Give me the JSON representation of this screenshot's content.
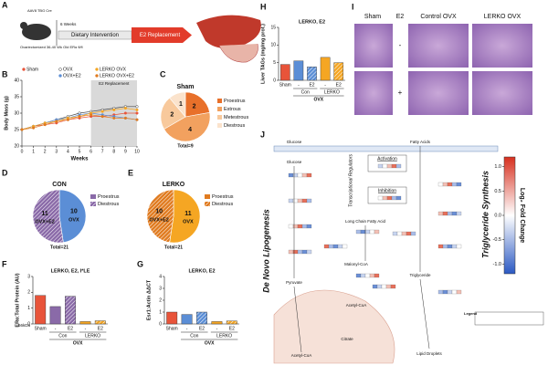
{
  "panels": [
    "A",
    "B",
    "C",
    "D",
    "E",
    "F",
    "G",
    "H",
    "I",
    "J"
  ],
  "schematic": {
    "aav": "AAV8 TBG Cre",
    "mouse": "Ovariectomized 36-40 Wk Old ERα fl/fl",
    "duration": "6 Weeks",
    "diet": "Dietary Intervention",
    "e2": "E2 Replacement"
  },
  "chart_data": [
    {
      "type": "line",
      "y_label": "Body Mass (g)",
      "x_label": "Weeks",
      "x": [
        0,
        1,
        2,
        3,
        4,
        5,
        6,
        7,
        8,
        9,
        10
      ],
      "xlim": [
        0,
        10
      ],
      "xticks": [
        0,
        1,
        2,
        3,
        4,
        5,
        6,
        7,
        8,
        9,
        10
      ],
      "ylim": [
        20,
        40
      ],
      "yticks": [
        20,
        25,
        30,
        35,
        40
      ],
      "annotation": {
        "text": "E2 Replacement",
        "x": [
          6,
          10
        ]
      },
      "series": [
        {
          "name": "Sham",
          "color": "#e8543a",
          "values": [
            25,
            26,
            26.5,
            27,
            28,
            28.5,
            29,
            29,
            29.5,
            30,
            30
          ]
        },
        {
          "name": "OVX",
          "color": "#444444",
          "values": [
            25,
            26,
            27,
            28,
            29,
            30,
            30.5,
            31,
            31.5,
            32,
            32
          ]
        },
        {
          "name": "OVX+E2",
          "color": "#5b8ed6",
          "values": [
            25,
            26,
            27,
            28,
            28.5,
            29.5,
            30,
            29.5,
            29,
            28.5,
            28
          ]
        },
        {
          "name": "LERKO OVX",
          "color": "#f5a623",
          "values": [
            25,
            26,
            27,
            27.5,
            28.5,
            29,
            30,
            30.5,
            31,
            31.5,
            31
          ]
        },
        {
          "name": "LERKO OVX+E2",
          "color": "#e07b20",
          "values": [
            25,
            25.5,
            26.5,
            27.5,
            28,
            29,
            29.5,
            29,
            28.5,
            28.5,
            28
          ]
        }
      ]
    },
    {
      "type": "pie",
      "title": "Sham",
      "categories": [
        "Proestrus",
        "Estrous",
        "Metestrous",
        "Diestrous"
      ],
      "values": [
        2,
        4,
        2,
        1
      ],
      "colors": [
        "#e8702a",
        "#f2a15f",
        "#f8c99c",
        "#fbe3cc"
      ],
      "footer": "Total=9"
    },
    {
      "type": "pie",
      "title": "CON",
      "categories": [
        "OVX",
        "OVX+E2"
      ],
      "values": [
        10,
        11
      ],
      "colors": [
        "#5b8ed6",
        "#8a6aa8"
      ],
      "hatched": [
        false,
        true
      ],
      "legend": [
        "Proestrus",
        "Diestrous"
      ],
      "footer": "Total=21"
    },
    {
      "type": "pie",
      "title": "LERKO",
      "categories": [
        "OVX",
        "OVX+E2"
      ],
      "values": [
        11,
        10
      ],
      "colors": [
        "#f5a623",
        "#e07b20"
      ],
      "hatched": [
        false,
        true
      ],
      "legend": [
        "Proestrus",
        "Diestrous"
      ],
      "footer": "Total=21"
    },
    {
      "type": "bar",
      "title": "LERKO, E2, I*LE",
      "y_label": "ERα:Total Protein (AU)",
      "categories": [
        "Sham",
        "-",
        "E2",
        "-",
        "E2"
      ],
      "groups": [
        "Con",
        "LERKO"
      ],
      "group_label": "OVX",
      "blot_label": "66kDa",
      "values": [
        1.8,
        1.1,
        1.75,
        0.15,
        0.2
      ],
      "colors": [
        "#e8543a",
        "#8a6aa8",
        "#8a6aa8",
        "#f5a623",
        "#f5a623"
      ],
      "hatched": [
        false,
        false,
        true,
        false,
        true
      ],
      "ylim": [
        0,
        3
      ],
      "yticks": [
        0,
        1,
        2,
        3
      ]
    },
    {
      "type": "bar",
      "title": "LERKO, E2",
      "y_label": "Esr1:Actin ΔΔCT",
      "categories": [
        "Sham",
        "-",
        "E2",
        "-",
        "E2"
      ],
      "groups": [
        "Con",
        "LERKO"
      ],
      "group_label": "OVX",
      "values": [
        1.0,
        0.8,
        1.0,
        0.2,
        0.25
      ],
      "colors": [
        "#e8543a",
        "#5b8ed6",
        "#5b8ed6",
        "#f5a623",
        "#f5a623"
      ],
      "hatched": [
        false,
        false,
        true,
        false,
        true
      ],
      "ylim": [
        0,
        4
      ],
      "yticks": [
        0,
        1,
        2,
        3,
        4
      ]
    },
    {
      "type": "bar",
      "title": "LERKO, E2",
      "y_label": "Liver TAGs (mg/mg prot.)",
      "categories": [
        "Sham",
        "-",
        "E2",
        "-",
        "E2"
      ],
      "groups": [
        "Con",
        "LERKO"
      ],
      "group_label": "OVX",
      "values": [
        4.5,
        5.5,
        3.8,
        6.5,
        5.0
      ],
      "colors": [
        "#e8543a",
        "#5b8ed6",
        "#5b8ed6",
        "#f5a623",
        "#f5a623"
      ],
      "hatched": [
        false,
        false,
        true,
        false,
        true
      ],
      "ylim": [
        0,
        15
      ],
      "yticks": [
        0,
        5,
        10,
        15
      ]
    }
  ],
  "histology": {
    "columns": [
      "Sham",
      "E2",
      "Control OVX",
      "LERKO OVX"
    ],
    "rows": [
      "-",
      "+"
    ]
  },
  "pathway": {
    "left_title": "De Novo Lipogenesis",
    "right_title": "Triglyceride Synthesis",
    "regulators": "Transcriptional Regulators",
    "activation": "Activation",
    "inhibition": "Inhibition",
    "nodes": [
      "Glucose",
      "Glucose",
      "Pyruvate",
      "Acetyl-CoA",
      "Citrate",
      "Acetyl-CoA",
      "Malonyl-CoA",
      "Long Chain Fatty Acid",
      "Fatty Acids",
      "Triglyceride",
      "Lipid Droplets"
    ],
    "legend": "Legend",
    "colorbar": {
      "label": "Log₂ Fold Change",
      "lim": [
        -1.2,
        1.2
      ],
      "ticks": [
        {
          "value": 1,
          "label": "1.0"
        },
        {
          "value": 0.5,
          "label": "0.5"
        },
        {
          "value": 0,
          "label": "0.0"
        },
        {
          "value": -0.5,
          "label": "-0.5"
        },
        {
          "value": -1,
          "label": "-1.0"
        }
      ]
    }
  }
}
